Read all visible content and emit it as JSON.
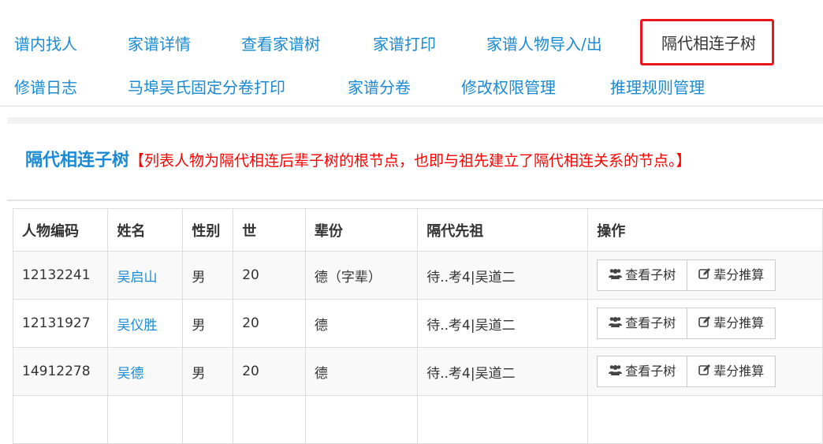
{
  "nav": {
    "items": [
      "谱内找人",
      "家谱详情",
      "查看家谱树",
      "家谱打印",
      "家谱人物导入/出",
      "隔代相连子树",
      "修谱日志",
      "马埠吴氏固定分卷打印",
      "家谱分卷",
      "修改权限管理",
      "推理规则管理"
    ],
    "active": "隔代相连子树"
  },
  "section": {
    "title": "隔代相连子树",
    "description": "【列表人物为隔代相连后辈子树的根节点，也即与祖先建立了隔代相连关系的节点。】"
  },
  "table": {
    "headers": [
      "人物编码",
      "姓名",
      "性别",
      "世",
      "辈份",
      "隔代先祖",
      "操作"
    ],
    "rows": [
      {
        "code": "12132241",
        "name": "吴启山",
        "gender": "男",
        "gen": "20",
        "beifen": "德（字辈）",
        "ancestor": "待..考4|吴道二"
      },
      {
        "code": "12131927",
        "name": "吴仪胜",
        "gender": "男",
        "gen": "20",
        "beifen": "德",
        "ancestor": "待..考4|吴道二"
      },
      {
        "code": "14912278",
        "name": "吴德",
        "gender": "男",
        "gen": "20",
        "beifen": "德",
        "ancestor": "待..考4|吴道二"
      }
    ],
    "actions": {
      "view_subtree": "查看子树",
      "infer_beifen": "辈分推算"
    }
  },
  "colors": {
    "link": "#1a8ad4",
    "highlight": "#e8171c",
    "description": "#ff0000"
  }
}
